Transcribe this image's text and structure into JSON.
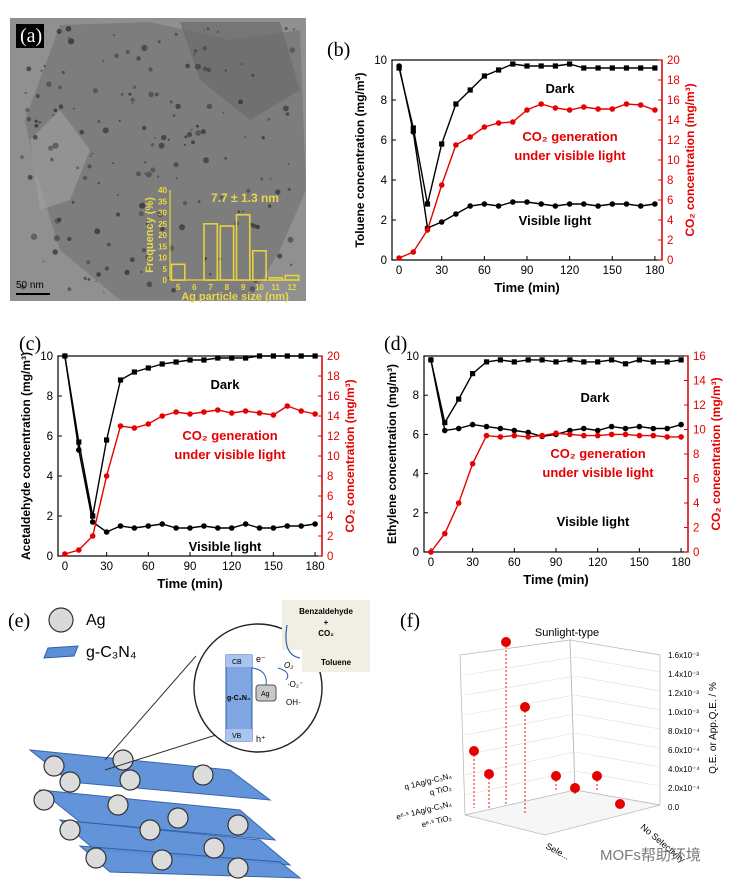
{
  "panels": {
    "a": "(a)",
    "b": "(b)",
    "c": "(c)",
    "d": "(d)",
    "e": "(e)",
    "f": "(f)"
  },
  "tem": {
    "scale_bar": "50 nm",
    "histogram_title": "7.7 ± 1.3 nm",
    "colors": {
      "bars": "#e6d23a",
      "text": "#e8d84a",
      "background": "#8b8b8b"
    }
  },
  "chart_data": [
    {
      "id": "a-inset",
      "type": "bar",
      "title": "7.7 ± 1.3 nm",
      "xlabel": "Ag particle size (nm)",
      "ylabel": "Frequency (%)",
      "categories": [
        "5",
        "6",
        "7",
        "8",
        "9",
        "10",
        "11",
        "12"
      ],
      "values": [
        7,
        0,
        25,
        24,
        29,
        13,
        1,
        2
      ],
      "xticks": [
        "5",
        "6",
        "7",
        "8",
        "9",
        "10",
        "11",
        "12"
      ],
      "yticks": [
        "0",
        "5",
        "10",
        "15",
        "20",
        "25",
        "30",
        "35",
        "40"
      ],
      "ylim": [
        0,
        40
      ]
    },
    {
      "id": "b",
      "type": "line",
      "xlabel": "Time (min)",
      "ylabel": "Toluene concentration (mg/m³)",
      "ylabel_right": "CO₂ concentration (mg/m³)",
      "xlim": [
        -5,
        185
      ],
      "ylim": [
        0,
        10
      ],
      "ylim_right": [
        0,
        20
      ],
      "xticks": [
        "0",
        "30",
        "60",
        "90",
        "120",
        "150",
        "180"
      ],
      "yticks": [
        "0",
        "2",
        "4",
        "6",
        "8",
        "10"
      ],
      "yticks_right": [
        "0",
        "2",
        "4",
        "6",
        "8",
        "10",
        "12",
        "14",
        "16",
        "18",
        "20"
      ],
      "series": [
        {
          "name": "Dark",
          "axis": "left",
          "color": "#000000",
          "marker": "square",
          "x": [
            0,
            10,
            20,
            30,
            40,
            50,
            60,
            70,
            80,
            90,
            100,
            110,
            120,
            130,
            140,
            150,
            160,
            170,
            180
          ],
          "y": [
            9.6,
            6.6,
            2.8,
            5.8,
            7.8,
            8.5,
            9.2,
            9.5,
            9.8,
            9.7,
            9.7,
            9.7,
            9.8,
            9.6,
            9.6,
            9.6,
            9.6,
            9.6,
            9.6
          ]
        },
        {
          "name": "Visible light",
          "axis": "left",
          "color": "#000000",
          "marker": "circle",
          "x": [
            0,
            10,
            20,
            30,
            40,
            50,
            60,
            70,
            80,
            90,
            100,
            110,
            120,
            130,
            140,
            150,
            160,
            170,
            180
          ],
          "y": [
            9.7,
            6.4,
            1.6,
            1.9,
            2.3,
            2.7,
            2.8,
            2.7,
            2.9,
            2.9,
            2.8,
            2.7,
            2.8,
            2.8,
            2.7,
            2.8,
            2.8,
            2.7,
            2.8
          ]
        },
        {
          "name": "CO₂ generation under visible light",
          "axis": "right",
          "color": "#e60000",
          "marker": "circle",
          "x": [
            0,
            10,
            20,
            30,
            40,
            50,
            60,
            70,
            80,
            90,
            100,
            110,
            120,
            130,
            140,
            150,
            160,
            170,
            180
          ],
          "y": [
            0.2,
            0.8,
            3.0,
            7.5,
            11.5,
            12.3,
            13.3,
            13.7,
            13.8,
            15.0,
            15.6,
            15.2,
            15.0,
            15.3,
            15.1,
            15.1,
            15.6,
            15.5,
            15.0
          ]
        }
      ],
      "annotations": [
        "Dark",
        "CO₂ generation",
        "under visible light",
        "Visible light"
      ]
    },
    {
      "id": "c",
      "type": "line",
      "xlabel": "Time (min)",
      "ylabel": "Acetaldehyde concentration (mg/m³)",
      "ylabel_right": "CO₂ concentration (mg/m³)",
      "xlim": [
        -5,
        185
      ],
      "ylim": [
        0,
        10
      ],
      "ylim_right": [
        0,
        20
      ],
      "xticks": [
        "0",
        "30",
        "60",
        "90",
        "120",
        "150",
        "180"
      ],
      "yticks": [
        "0",
        "2",
        "4",
        "6",
        "8",
        "10"
      ],
      "yticks_right": [
        "0",
        "2",
        "4",
        "6",
        "8",
        "10",
        "12",
        "14",
        "16",
        "18",
        "20"
      ],
      "series": [
        {
          "name": "Dark",
          "axis": "left",
          "color": "#000000",
          "marker": "square",
          "x": [
            0,
            10,
            20,
            30,
            40,
            50,
            60,
            70,
            80,
            90,
            100,
            110,
            120,
            130,
            140,
            150,
            160,
            170,
            180
          ],
          "y": [
            10.0,
            5.7,
            2.0,
            5.8,
            8.8,
            9.2,
            9.4,
            9.6,
            9.7,
            9.8,
            9.8,
            9.9,
            9.9,
            9.9,
            10.0,
            10.0,
            10.0,
            10.0,
            10.0
          ]
        },
        {
          "name": "Visible light",
          "axis": "left",
          "color": "#000000",
          "marker": "circle",
          "x": [
            0,
            10,
            20,
            30,
            40,
            50,
            60,
            70,
            80,
            90,
            100,
            110,
            120,
            130,
            140,
            150,
            160,
            170,
            180
          ],
          "y": [
            10.0,
            5.3,
            1.7,
            1.2,
            1.5,
            1.4,
            1.5,
            1.6,
            1.4,
            1.4,
            1.5,
            1.4,
            1.4,
            1.6,
            1.4,
            1.4,
            1.5,
            1.5,
            1.6
          ]
        },
        {
          "name": "CO₂ generation under visible light",
          "axis": "right",
          "color": "#e60000",
          "marker": "circle",
          "x": [
            0,
            10,
            20,
            30,
            40,
            50,
            60,
            70,
            80,
            90,
            100,
            110,
            120,
            130,
            140,
            150,
            160,
            170,
            180
          ],
          "y": [
            0.2,
            0.6,
            2.0,
            8.0,
            13.0,
            12.8,
            13.2,
            14.0,
            14.4,
            14.2,
            14.4,
            14.6,
            14.3,
            14.5,
            14.3,
            14.1,
            15.0,
            14.5,
            14.2
          ]
        }
      ],
      "annotations": [
        "Dark",
        "CO₂ generation",
        "under visible light",
        "Visible light"
      ]
    },
    {
      "id": "d",
      "type": "line",
      "xlabel": "Time (min)",
      "ylabel": "Ethylene concentration (mg/m³)",
      "ylabel_right": "CO₂ concentration (mg/m³)",
      "xlim": [
        -5,
        185
      ],
      "ylim": [
        0,
        10
      ],
      "ylim_right": [
        0,
        16
      ],
      "xticks": [
        "0",
        "30",
        "60",
        "90",
        "120",
        "150",
        "180"
      ],
      "yticks": [
        "0",
        "2",
        "4",
        "6",
        "8",
        "10"
      ],
      "yticks_right": [
        "0",
        "2",
        "4",
        "6",
        "8",
        "10",
        "12",
        "14",
        "16"
      ],
      "series": [
        {
          "name": "Dark",
          "axis": "left",
          "color": "#000000",
          "marker": "square",
          "x": [
            0,
            10,
            20,
            30,
            40,
            50,
            60,
            70,
            80,
            90,
            100,
            110,
            120,
            130,
            140,
            150,
            160,
            170,
            180
          ],
          "y": [
            9.8,
            6.6,
            7.8,
            9.1,
            9.7,
            9.8,
            9.7,
            9.8,
            9.8,
            9.7,
            9.8,
            9.7,
            9.7,
            9.8,
            9.6,
            9.8,
            9.7,
            9.7,
            9.8
          ]
        },
        {
          "name": "Visible light",
          "axis": "left",
          "color": "#000000",
          "marker": "circle",
          "x": [
            0,
            10,
            20,
            30,
            40,
            50,
            60,
            70,
            80,
            90,
            100,
            110,
            120,
            130,
            140,
            150,
            160,
            170,
            180
          ],
          "y": [
            9.8,
            6.2,
            6.3,
            6.5,
            6.4,
            6.3,
            6.2,
            6.1,
            5.9,
            6.0,
            6.2,
            6.3,
            6.2,
            6.4,
            6.3,
            6.4,
            6.3,
            6.3,
            6.5
          ]
        },
        {
          "name": "CO₂ generation under visible light",
          "axis": "right",
          "color": "#e60000",
          "marker": "circle",
          "x": [
            0,
            10,
            20,
            30,
            40,
            50,
            60,
            70,
            80,
            90,
            100,
            110,
            120,
            130,
            140,
            150,
            160,
            170,
            180
          ],
          "y": [
            0.0,
            1.5,
            4.0,
            7.2,
            9.5,
            9.4,
            9.5,
            9.4,
            9.5,
            9.7,
            9.6,
            9.5,
            9.5,
            9.6,
            9.6,
            9.5,
            9.5,
            9.4,
            9.4
          ]
        }
      ],
      "annotations": [
        "Dark",
        "CO₂ generation",
        "under visible light",
        "Visible light"
      ]
    },
    {
      "id": "f",
      "type": "scatter",
      "title": "Sunlight-type",
      "zlabel": "Q.E. or App.Q.E. / %",
      "zticks": [
        "0.0",
        "2.0x10⁻⁴",
        "4.0x10⁻⁴",
        "6.0x10⁻⁴",
        "8.0x10⁻⁴",
        "1.0x10⁻³",
        "1.2x10⁻³",
        "1.4x10⁻³",
        "1.6x10⁻³"
      ],
      "catalysts": [
        "q 1Ag/g-C₃N₄",
        "q TiO₂",
        "eᵉ·ˢ 1Ag/g-C₃N₄",
        "eᵉ·ˢ TiO₂"
      ],
      "selectivity_axis": [
        "Sele...",
        "No Selectivity"
      ],
      "color": "#e60000"
    }
  ],
  "diagram_e": {
    "legend": [
      {
        "symbol": "sphere",
        "label": "Ag"
      },
      {
        "symbol": "sheet",
        "label": "g-C₃N₄"
      }
    ],
    "inset": {
      "cb": "CB",
      "vb": "VB",
      "material": "g-C₃N₄",
      "metal": "Ag",
      "electron": "e⁻",
      "hole": "h⁺",
      "o2": "O₂",
      "superoxide": "·O₂⁻",
      "hydroxyl": "OH·"
    },
    "reaction": {
      "product_1": "Benzaldehyde",
      "plus": "+",
      "product_2": "CO₂",
      "reactant": "Toluene"
    }
  },
  "watermark": "MOFs帮助环境"
}
